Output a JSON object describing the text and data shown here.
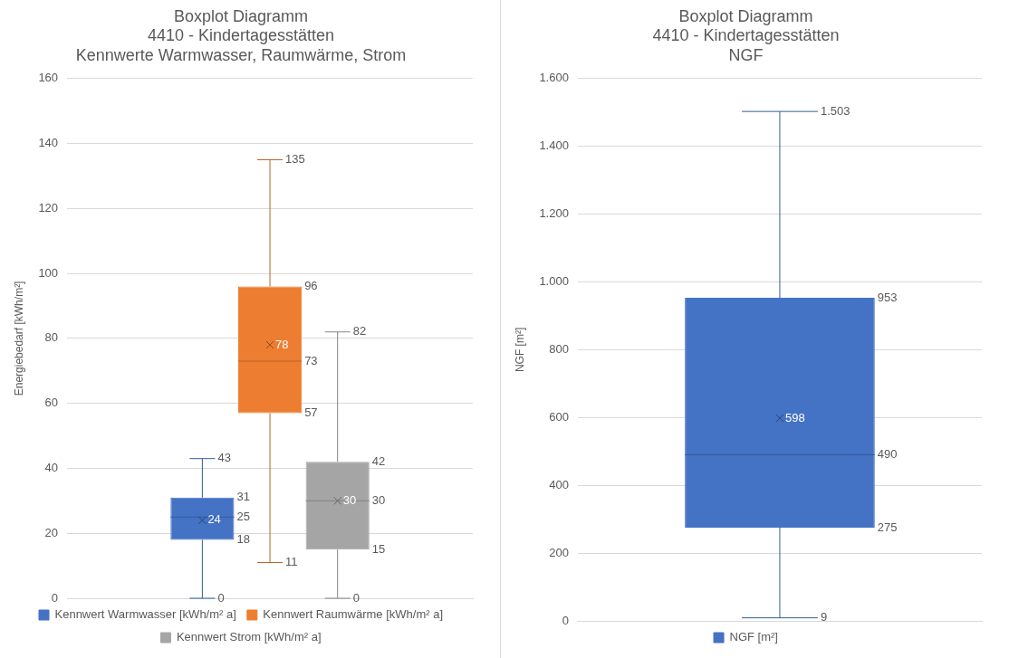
{
  "chart_data": [
    {
      "type": "box",
      "title": "Boxplot Diagramm\n4410 - Kindertagesstätten\nKennwerte Warmwasser, Raumwärme, Strom",
      "ylabel": "Energiebedarf [kWh/m²]",
      "categories": [
        null
      ],
      "ylim": [
        0,
        160
      ],
      "yticks": [
        0,
        20,
        40,
        60,
        80,
        100,
        120,
        140,
        160
      ],
      "grid": "y",
      "legend": "bottom",
      "tick_labels": "y",
      "series": [
        {
          "name": "Kennwert Warmwasser [kWh/m² a]",
          "color": "#4472c4",
          "boxes": [
            {
              "low": 0,
              "q1": 18,
              "median": 25,
              "q3": 31,
              "high": 43,
              "mean": 24
            }
          ]
        },
        {
          "name": "Kennwert Raumwärme [kWh/m² a]",
          "color": "#ed7d31",
          "boxes": [
            {
              "low": 11,
              "q1": 57,
              "median": 73,
              "q3": 96,
              "high": 135,
              "mean": 78
            }
          ]
        },
        {
          "name": "Kennwert Strom [kWh/m² a]",
          "color": "#a5a5a5",
          "boxes": [
            {
              "low": 0,
              "q1": 15,
              "median": 30,
              "q3": 42,
              "high": 82,
              "mean": 30
            }
          ]
        }
      ],
      "annotations": [
        "43",
        "31",
        "25",
        "18",
        "0",
        "24",
        "135",
        "96",
        "73",
        "57",
        "11",
        "78",
        "82",
        "42",
        "30",
        "15",
        "0",
        "30"
      ]
    },
    {
      "type": "box",
      "title": "Boxplot Diagramm\n4410 - Kindertagesstätten\nNGF",
      "ylabel": "NGF [m²]",
      "categories": [
        null
      ],
      "ylim": [
        0,
        1600
      ],
      "yticks": [
        0,
        200,
        400,
        600,
        800,
        {
          "value": 1000,
          "label": "1.000"
        },
        {
          "value": 1200,
          "label": "1.200"
        },
        {
          "value": 1400,
          "label": "1.400"
        },
        {
          "value": 1600,
          "label": "1.600"
        }
      ],
      "grid": "y",
      "legend": "bottom",
      "tick_labels": "y",
      "series": [
        {
          "name": "NGF [m²]",
          "color": "#4472c4",
          "boxes": [
            {
              "low": 9,
              "q1": 275,
              "median": 490,
              "q3": 953,
              "high": 1503,
              "mean": 598
            }
          ]
        }
      ],
      "annotations": [
        "1.503",
        "953",
        "490",
        "275",
        "9",
        "598"
      ]
    }
  ]
}
